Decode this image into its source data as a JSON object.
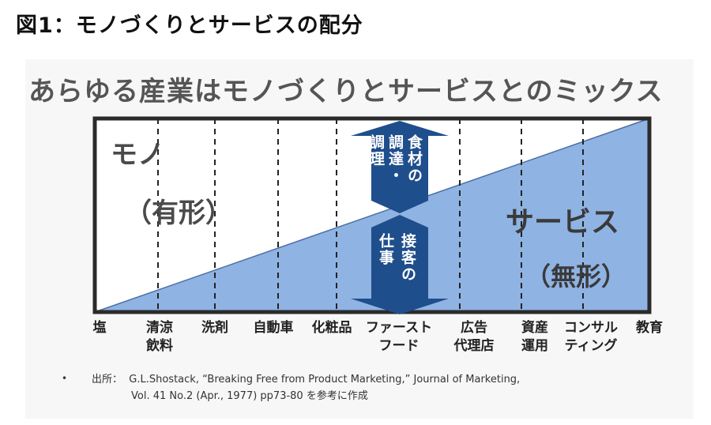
{
  "figure_title": "図1：モノづくりとサービスの配分",
  "headline": "あらゆる産業はモノづくりとサービスとのミックス",
  "left_label": "モノ",
  "left_sublabel": "（有形）",
  "right_label": "サービス",
  "right_sublabel": "（無形）",
  "arrow_up_text": [
    "食材の",
    "調達・",
    "調理"
  ],
  "arrow_down_text": [
    "接客の",
    "仕事"
  ],
  "categories": [
    "塩",
    "清涼\n飲料",
    "洗剤",
    "自動車",
    "化粧品",
    "ファースト\nフード",
    "広告\n代理店",
    "資産\n運用",
    "コンサル\nティング",
    "教育"
  ],
  "source": {
    "bullet": "•",
    "prefix": "出所：",
    "line1": "G.L.Shostack, “Breaking Free from Product Marketing,” Journal of Marketing,",
    "line2": "Vol. 41 No.2 (Apr., 1977) pp73-80 を参考に作成"
  },
  "colors": {
    "service_fill": "#8fb3e3",
    "arrow_fill": "#1f4e8c",
    "frame": "#2b2b2b"
  }
}
